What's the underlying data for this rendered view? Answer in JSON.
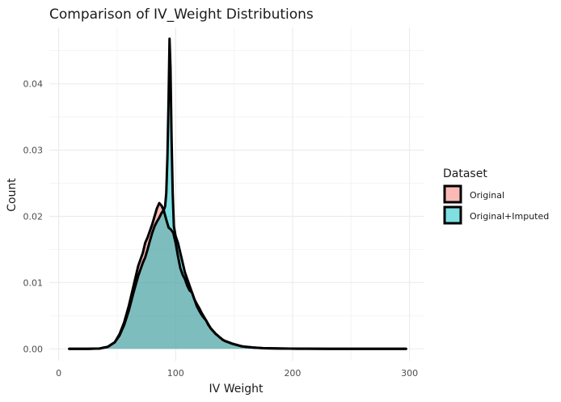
{
  "chart_data": {
    "type": "area",
    "title": "Comparison of IV_Weight Distributions",
    "xlabel": "IV Weight",
    "ylabel": "Count",
    "xlim": [
      -8,
      312
    ],
    "ylim": [
      -0.0018,
      0.0485
    ],
    "x_ticks": [
      0,
      100,
      200,
      300
    ],
    "x_tick_labels": [
      "0",
      "100",
      "200",
      "300"
    ],
    "y_ticks": [
      0,
      0.01,
      0.02,
      0.03,
      0.04
    ],
    "y_tick_labels": [
      "0.00",
      "0.01",
      "0.02",
      "0.03",
      "0.04"
    ],
    "grid": true,
    "legend_title": "Dataset",
    "legend_position": "right",
    "series": [
      {
        "name": "Original",
        "color": "#F8766D",
        "points": [
          [
            9,
            0
          ],
          [
            25,
            0
          ],
          [
            35,
            5e-05
          ],
          [
            42,
            0.0003
          ],
          [
            48,
            0.001
          ],
          [
            52,
            0.0022
          ],
          [
            56,
            0.004
          ],
          [
            60,
            0.0065
          ],
          [
            64,
            0.0095
          ],
          [
            68,
            0.0125
          ],
          [
            72,
            0.0145
          ],
          [
            74,
            0.016
          ],
          [
            76,
            0.0168
          ],
          [
            78,
            0.0178
          ],
          [
            80,
            0.0188
          ],
          [
            82,
            0.02
          ],
          [
            84,
            0.0212
          ],
          [
            86,
            0.022
          ],
          [
            88,
            0.0216
          ],
          [
            90,
            0.0208
          ],
          [
            92,
            0.0195
          ],
          [
            94,
            0.0183
          ],
          [
            96,
            0.018
          ],
          [
            98,
            0.0175
          ],
          [
            100,
            0.016
          ],
          [
            102,
            0.014
          ],
          [
            104,
            0.0122
          ],
          [
            106,
            0.0112
          ],
          [
            108,
            0.0105
          ],
          [
            110,
            0.0095
          ],
          [
            112,
            0.0088
          ],
          [
            114,
            0.0085
          ],
          [
            116,
            0.0075
          ],
          [
            118,
            0.0065
          ],
          [
            120,
            0.0058
          ],
          [
            122,
            0.0052
          ],
          [
            124,
            0.0047
          ],
          [
            126,
            0.0043
          ],
          [
            128,
            0.0036
          ],
          [
            130,
            0.0031
          ],
          [
            132,
            0.0027
          ],
          [
            134,
            0.0023
          ],
          [
            136,
            0.002
          ],
          [
            138,
            0.0017
          ],
          [
            140,
            0.0014
          ],
          [
            142,
            0.0012
          ],
          [
            145,
            0.001
          ],
          [
            148,
            0.0008
          ],
          [
            150,
            0.0007
          ],
          [
            152,
            0.0006
          ],
          [
            156,
            0.0004
          ],
          [
            160,
            0.0003
          ],
          [
            166,
            0.0002
          ],
          [
            175,
            0.0001
          ],
          [
            190,
            5e-05
          ],
          [
            205,
            2e-05
          ],
          [
            230,
            0
          ],
          [
            297,
            0
          ]
        ]
      },
      {
        "name": "Original+Imputed",
        "color": "#00BFC4",
        "points": [
          [
            9,
            0
          ],
          [
            25,
            0
          ],
          [
            35,
            5e-05
          ],
          [
            42,
            0.0003
          ],
          [
            48,
            0.001
          ],
          [
            52,
            0.002
          ],
          [
            56,
            0.0036
          ],
          [
            60,
            0.0058
          ],
          [
            64,
            0.0085
          ],
          [
            68,
            0.011
          ],
          [
            72,
            0.013
          ],
          [
            74,
            0.0138
          ],
          [
            76,
            0.015
          ],
          [
            78,
            0.0163
          ],
          [
            80,
            0.0175
          ],
          [
            82,
            0.0185
          ],
          [
            84,
            0.0192
          ],
          [
            86,
            0.0198
          ],
          [
            88,
            0.0205
          ],
          [
            90,
            0.021
          ],
          [
            91,
            0.0215
          ],
          [
            92,
            0.0235
          ],
          [
            93,
            0.029
          ],
          [
            94,
            0.038
          ],
          [
            94.8,
            0.0468
          ],
          [
            95.6,
            0.0425
          ],
          [
            96.5,
            0.032
          ],
          [
            97.5,
            0.0235
          ],
          [
            98.5,
            0.0185
          ],
          [
            100,
            0.017
          ],
          [
            102,
            0.016
          ],
          [
            104,
            0.0145
          ],
          [
            106,
            0.013
          ],
          [
            108,
            0.0115
          ],
          [
            110,
            0.0105
          ],
          [
            112,
            0.0095
          ],
          [
            114,
            0.0085
          ],
          [
            116,
            0.0075
          ],
          [
            118,
            0.0068
          ],
          [
            120,
            0.0062
          ],
          [
            122,
            0.0055
          ],
          [
            124,
            0.0049
          ],
          [
            126,
            0.0043
          ],
          [
            128,
            0.0037
          ],
          [
            130,
            0.0031
          ],
          [
            132,
            0.0027
          ],
          [
            134,
            0.0023
          ],
          [
            136,
            0.002
          ],
          [
            138,
            0.0017
          ],
          [
            140,
            0.0014
          ],
          [
            142,
            0.0012
          ],
          [
            145,
            0.001
          ],
          [
            148,
            0.0008
          ],
          [
            150,
            0.0007
          ],
          [
            152,
            0.0006
          ],
          [
            156,
            0.0004
          ],
          [
            160,
            0.0003
          ],
          [
            166,
            0.0002
          ],
          [
            175,
            0.0001
          ],
          [
            190,
            5e-05
          ],
          [
            205,
            2e-05
          ],
          [
            230,
            0
          ],
          [
            297,
            0
          ]
        ]
      }
    ]
  }
}
